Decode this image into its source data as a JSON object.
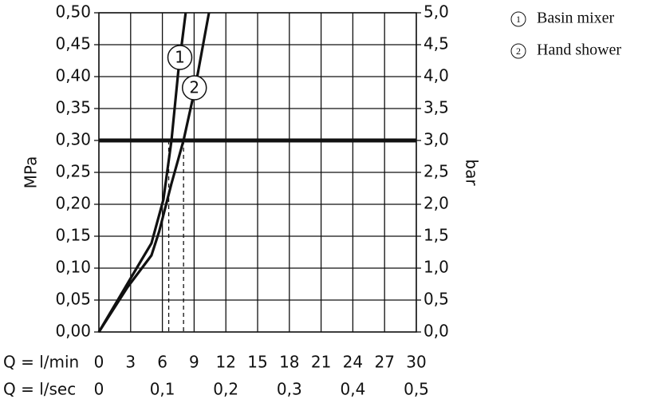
{
  "chart_data": {
    "type": "line",
    "y_label": "MPa",
    "y2_label": "bar",
    "x_label": "Q = l/min",
    "x2_label": "Q = l/sec",
    "xlim": [
      0,
      30
    ],
    "xticks": [
      0,
      3,
      6,
      9,
      12,
      15,
      18,
      21,
      24,
      27,
      30
    ],
    "x2lim": [
      0,
      0.5
    ],
    "x2ticks": [
      0,
      {
        "value": 0.1,
        "label": "0,1"
      },
      {
        "value": 0.2,
        "label": "0,2"
      },
      {
        "value": 0.3,
        "label": "0,3"
      },
      {
        "value": 0.4,
        "label": "0,4"
      },
      {
        "value": 0.5,
        "label": "0,5"
      }
    ],
    "ylim": [
      0,
      0.5
    ],
    "yticks": [
      {
        "value": 0,
        "label": "0,00"
      },
      {
        "value": 0.05,
        "label": "0,05"
      },
      {
        "value": 0.1,
        "label": "0,10"
      },
      {
        "value": 0.15,
        "label": "0,15"
      },
      {
        "value": 0.2,
        "label": "0,20"
      },
      {
        "value": 0.25,
        "label": "0,25"
      },
      {
        "value": 0.3,
        "label": "0,30"
      },
      {
        "value": 0.35,
        "label": "0,35"
      },
      {
        "value": 0.4,
        "label": "0,40"
      },
      {
        "value": 0.45,
        "label": "0,45"
      },
      {
        "value": 0.5,
        "label": "0,50"
      }
    ],
    "y2lim": [
      0,
      5
    ],
    "y2ticks": [
      {
        "value": 0,
        "label": "0,0"
      },
      {
        "value": 0.5,
        "label": "0,5"
      },
      {
        "value": 1,
        "label": "1,0"
      },
      {
        "value": 1.5,
        "label": "1,5"
      },
      {
        "value": 2,
        "label": "2,0"
      },
      {
        "value": 2.5,
        "label": "2,5"
      },
      {
        "value": 3,
        "label": "3,0"
      },
      {
        "value": 3.5,
        "label": "3,5"
      },
      {
        "value": 4,
        "label": "4,0"
      },
      {
        "value": 4.5,
        "label": "4,5"
      },
      {
        "value": 5,
        "label": "5,0"
      }
    ],
    "grid": true,
    "reference_line": 0.3,
    "drop_lines": [
      6.6,
      8.0
    ],
    "series": [
      {
        "name": "Basin mixer",
        "marker_label": "1",
        "color": "#111111",
        "x": [
          0,
          3.84,
          4.97,
          6.1,
          6.86,
          7.5,
          8.2
        ],
        "values": [
          0,
          0.1075,
          0.139,
          0.2075,
          0.3,
          0.4075,
          0.5
        ]
      },
      {
        "name": "Hand shower",
        "marker_label": "2",
        "color": "#111111",
        "x": [
          0,
          2.7,
          4.97,
          5.7,
          6.86,
          8.0,
          9.1,
          10.4
        ],
        "values": [
          0,
          0.07,
          0.12,
          0.1575,
          0.2325,
          0.3,
          0.3825,
          0.5
        ]
      }
    ]
  }
}
